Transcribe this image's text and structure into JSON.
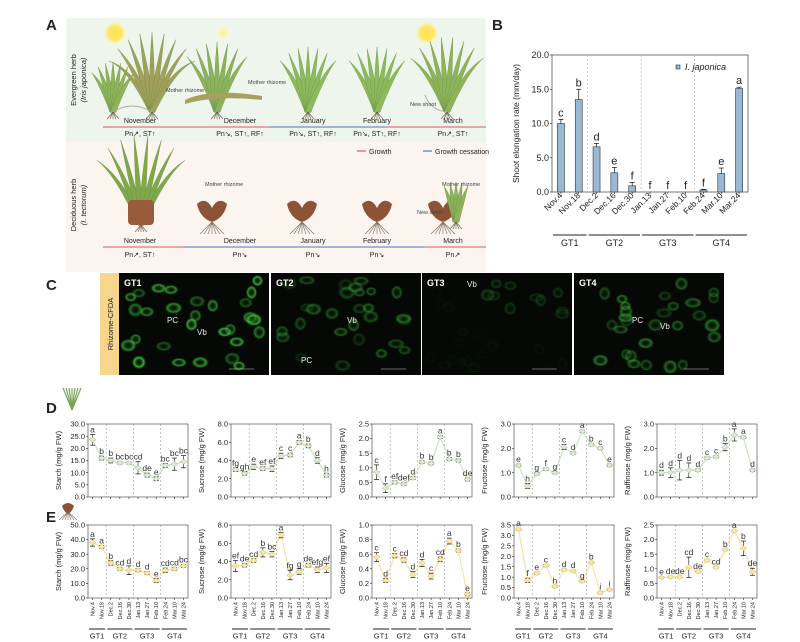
{
  "panel_labels": {
    "a": "A",
    "b": "B",
    "c": "C",
    "d": "D",
    "e": "E"
  },
  "panel_a": {
    "row_top": {
      "line1": "Evergreen herb",
      "line2": "(Iris japonica)"
    },
    "row_bottom": {
      "line1": "Deciduous herb",
      "line2": "(I. tectorum)"
    },
    "months": [
      "November",
      "December",
      "January",
      "February",
      "March"
    ],
    "top_status": [
      "Pn↗, ST↑",
      "Pn↘, ST↑, RF↑",
      "Pn↘, ST↑, RF↑",
      "Pn↘, ST↑, RF↑",
      "Pn↗, ST↑"
    ],
    "bottom_status": [
      "Pn↗, ST↑",
      "Pn↘",
      "Pn↘",
      "Pn↘",
      "Pn↗"
    ],
    "mother_rhizome": "Mother rhizome",
    "new_shoot": "New shoot",
    "legend": {
      "growth": "Growth",
      "cessation": "Growth cessation"
    },
    "colors": {
      "growth": "#e8747c",
      "cessation": "#6f8fd0"
    }
  },
  "panel_c": {
    "side_label": "Rhizome-CFDA",
    "images": [
      {
        "title": "GT1",
        "labels": [
          "PC",
          "Vb"
        ]
      },
      {
        "title": "GT2",
        "labels": [
          "Vb",
          "PC"
        ]
      },
      {
        "title": "GT3",
        "labels": [
          "Vb"
        ]
      },
      {
        "title": "GT4",
        "labels": [
          "PC",
          "Vb"
        ]
      }
    ]
  },
  "dates": [
    "Nov.4",
    "Nov.18",
    "Dec.2",
    "Dec.16",
    "Dec.30",
    "Jan.13",
    "Jan.27",
    "Feb.10",
    "Feb.24",
    "Mar.10",
    "Mar.24"
  ],
  "groups": [
    "GT1",
    "GT2",
    "GT3",
    "GT4"
  ],
  "chart_data": [
    {
      "id": "B",
      "type": "bar",
      "ylabel": "Shoot elongation rate (mm/day)",
      "legend": "I. japonica",
      "ylim": [
        0,
        20
      ],
      "yticks": [
        "0.0",
        "5.0",
        "10.0",
        "15.0",
        "20.0"
      ],
      "values": [
        10.0,
        13.5,
        6.6,
        2.8,
        0.9,
        0,
        0,
        0,
        0.3,
        2.7,
        15.1
      ],
      "errors": [
        0.6,
        1.5,
        0.5,
        0.8,
        0.5,
        0,
        0,
        0,
        0.1,
        0.8,
        0.2
      ],
      "letters": [
        "c",
        "b",
        "d",
        "e",
        "f",
        "f",
        "f",
        "f",
        "f",
        "e",
        "a"
      ],
      "color": "#9bb8d3"
    },
    {
      "id": "D-starch",
      "type": "line",
      "ylabel": "Starch (mg/g FW)",
      "ylim": [
        0,
        30
      ],
      "yticks": [
        "0.0",
        "5.0",
        "10.0",
        "15.0",
        "20.0",
        "25.0",
        "30.0"
      ],
      "values": [
        23.5,
        16,
        15,
        14,
        14,
        12,
        9,
        7.5,
        13,
        13.5,
        14.5
      ],
      "errors": [
        2.2,
        0.8,
        1,
        0.5,
        0.5,
        2.5,
        0.8,
        0.8,
        0.8,
        2.5,
        2.5
      ],
      "letters": [
        "a",
        "b",
        "b",
        "bc",
        "bc",
        "cd",
        "de",
        "e",
        "bc",
        "bc",
        "bc"
      ]
    },
    {
      "id": "D-sucrose",
      "type": "line",
      "ylabel": "Sucrose (mg/g FW)",
      "ylim": [
        0,
        8
      ],
      "yticks": [
        "0.0",
        "2.0",
        "4.0",
        "6.0",
        "8.0"
      ],
      "values": [
        3.0,
        2.6,
        3.3,
        3.1,
        3.1,
        4.5,
        4.6,
        6.0,
        5.6,
        4.0,
        2.4
      ],
      "errors": [
        0.2,
        0.2,
        0.3,
        0.2,
        0.3,
        0.3,
        0.2,
        0.2,
        0.2,
        0.3,
        0.2
      ],
      "letters": [
        "fg",
        "gh",
        "e",
        "ef",
        "ef",
        "c",
        "c",
        "a",
        "b",
        "d",
        "h"
      ]
    },
    {
      "id": "D-glucose",
      "type": "line",
      "ylabel": "Glucose (mg/g FW)",
      "ylim": [
        0,
        2.5
      ],
      "yticks": [
        "0.0",
        "0.5",
        "1.0",
        "1.5",
        "2.0",
        "2.5"
      ],
      "values": [
        0.85,
        0.3,
        0.5,
        0.45,
        0.65,
        1.2,
        1.15,
        2.05,
        1.3,
        1.25,
        0.6
      ],
      "errors": [
        0.25,
        0.15,
        0.05,
        0.05,
        0.05,
        0.05,
        0.05,
        0.05,
        0.05,
        0.05,
        0.05
      ],
      "letters": [
        "c",
        "f",
        "ef",
        "def",
        "d",
        "b",
        "b",
        "a",
        "b",
        "b",
        "de"
      ]
    },
    {
      "id": "D-fructose",
      "type": "line",
      "ylabel": "Fructose (mg/g FW)",
      "ylim": [
        0,
        3
      ],
      "yticks": [
        "0.0",
        "1.0",
        "2.0",
        "3.0"
      ],
      "values": [
        1.3,
        0.45,
        0.95,
        1.15,
        1.0,
        2.05,
        1.8,
        2.7,
        2.15,
        2.0,
        1.3
      ],
      "errors": [
        0.05,
        0.1,
        0.05,
        0.05,
        0.05,
        0.1,
        0.05,
        0.05,
        0.05,
        0.05,
        0.05
      ],
      "letters": [
        "e",
        "h",
        "g",
        "f",
        "g",
        "c",
        "d",
        "a",
        "b",
        "c",
        "e"
      ]
    },
    {
      "id": "D-raffinose",
      "type": "line",
      "ylabel": "Raffinose (mg/g FW)",
      "ylim": [
        0,
        3
      ],
      "yticks": [
        "0.0",
        "1.0",
        "2.0",
        "3.0"
      ],
      "values": [
        1.0,
        1.0,
        1.1,
        1.1,
        1.1,
        1.6,
        1.65,
        2.05,
        2.55,
        2.45,
        1.1
      ],
      "errors": [
        0.1,
        0.2,
        0.4,
        0.3,
        0.05,
        0.05,
        0.05,
        0.15,
        0.25,
        0.05,
        0.05
      ],
      "letters": [
        "d",
        "d",
        "d",
        "d",
        "d",
        "c",
        "c",
        "b",
        "a",
        "a",
        "d"
      ]
    },
    {
      "id": "E-starch",
      "type": "line",
      "ylabel": "Starch (mg/g FW)",
      "ylim": [
        0,
        50
      ],
      "yticks": [
        "0.0",
        "10.0",
        "20.0",
        "30.0",
        "40.0",
        "50.0"
      ],
      "values": [
        38,
        35,
        24,
        20,
        19,
        19,
        17,
        12,
        19,
        20,
        22
      ],
      "errors": [
        2.5,
        1,
        1.5,
        1,
        3,
        1,
        1,
        1.5,
        1.5,
        1,
        1
      ],
      "letters": [
        "a",
        "a",
        "b",
        "cd",
        "d",
        "d",
        "d",
        "e",
        "cd",
        "cd",
        "bc"
      ]
    },
    {
      "id": "E-sucrose",
      "type": "line",
      "ylabel": "Sucrose (mg/g FW)",
      "ylim": [
        0,
        8
      ],
      "yticks": [
        "0.0",
        "2.0",
        "4.0",
        "6.0",
        "8.0"
      ],
      "values": [
        3.5,
        3.6,
        4.1,
        5.0,
        4.8,
        6.9,
        2.5,
        2.9,
        3.6,
        3.1,
        3.3
      ],
      "errors": [
        0.6,
        0.2,
        0.2,
        0.5,
        0.3,
        0.3,
        0.5,
        0.3,
        0.2,
        0.3,
        0.5
      ],
      "letters": [
        "ef",
        "de",
        "cd",
        "b",
        "bc",
        "a",
        "fg",
        "g",
        "de",
        "efg",
        "ef"
      ]
    },
    {
      "id": "E-glucose",
      "type": "line",
      "ylabel": "Glucose (mg/g FW)",
      "ylim": [
        0,
        1
      ],
      "yticks": [
        "0.0",
        "0.2",
        "0.4",
        "0.6",
        "0.8",
        "1.0"
      ],
      "values": [
        0.56,
        0.24,
        0.58,
        0.52,
        0.32,
        0.48,
        0.3,
        0.53,
        0.78,
        0.65,
        0.05
      ],
      "errors": [
        0.06,
        0.03,
        0.03,
        0.03,
        0.04,
        0.05,
        0.04,
        0.03,
        0.04,
        0.02,
        0.02
      ],
      "letters": [
        "c",
        "d",
        "c",
        "cd",
        "d",
        "d",
        "c",
        "cd",
        "a",
        "b",
        "e"
      ]
    },
    {
      "id": "E-fructose",
      "type": "line",
      "ylabel": "Fructose (mg/g FW)",
      "ylim": [
        0,
        3.5
      ],
      "yticks": [
        "0.0",
        "0.5",
        "1.0",
        "1.5",
        "2.0",
        "2.5",
        "3.0",
        "3.5"
      ],
      "values": [
        3.3,
        0.85,
        1.2,
        1.55,
        0.55,
        1.35,
        1.3,
        0.8,
        1.7,
        0.25,
        0.4
      ],
      "errors": [
        0.05,
        0.1,
        0.05,
        0.05,
        0.05,
        0.05,
        0.05,
        0.05,
        0.05,
        0.05,
        0.05
      ],
      "letters": [
        "a",
        "f",
        "e",
        "c",
        "h",
        "d",
        "d",
        "g",
        "b",
        "i",
        "i"
      ]
    },
    {
      "id": "E-raffinose",
      "type": "line",
      "ylabel": "Raffinose (mg/g FW)",
      "ylim": [
        0,
        2.5
      ],
      "yticks": [
        "0.0",
        "0.5",
        "1.0",
        "1.5",
        "2.0",
        "2.5"
      ],
      "values": [
        0.7,
        0.72,
        0.72,
        1.05,
        0.9,
        1.3,
        1.05,
        1.65,
        2.3,
        1.7,
        0.9
      ],
      "errors": [
        0.03,
        0.03,
        0.03,
        0.35,
        0.03,
        0.03,
        0.03,
        0.03,
        0.03,
        0.25,
        0.12
      ],
      "letters": [
        "e",
        "de",
        "de",
        "cd",
        "de",
        "c",
        "cd",
        "b",
        "a",
        "b",
        "de"
      ]
    }
  ]
}
